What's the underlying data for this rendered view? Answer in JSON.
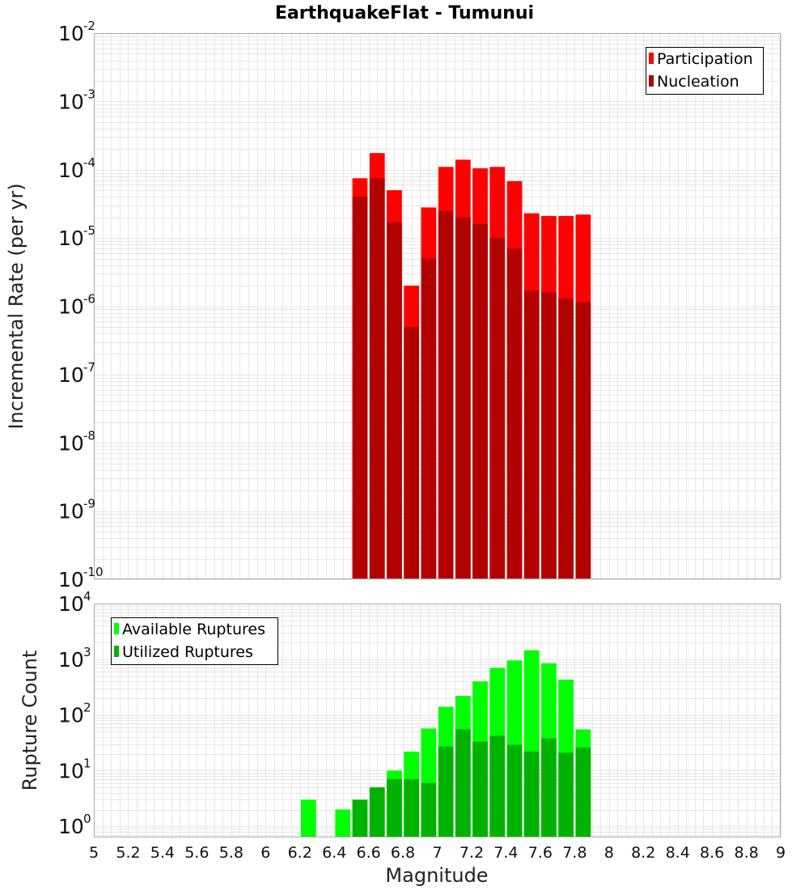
{
  "chart_data": {
    "title": "EarthquakeFlat - Tumunui",
    "xlabel": "Magnitude",
    "x_ticks": [
      "5",
      "5.2",
      "5.4",
      "5.6",
      "5.8",
      "6",
      "6.2",
      "6.4",
      "6.6",
      "6.8",
      "7",
      "7.2",
      "7.4",
      "7.6",
      "7.8",
      "8",
      "8.2",
      "8.4",
      "8.6",
      "8.8",
      "9"
    ],
    "xlim": [
      5,
      9
    ],
    "grid": true,
    "panels": [
      {
        "type": "bar",
        "ylabel": "Incremental Rate (per yr)",
        "yscale": "log",
        "ylim_exp": [
          -10,
          -2
        ],
        "y_ticks": [
          {
            "base": "10",
            "exp": "-2"
          },
          {
            "base": "10",
            "exp": "-3"
          },
          {
            "base": "10",
            "exp": "-4"
          },
          {
            "base": "10",
            "exp": "-5"
          },
          {
            "base": "10",
            "exp": "-6"
          },
          {
            "base": "10",
            "exp": "-7"
          },
          {
            "base": "10",
            "exp": "-8"
          },
          {
            "base": "10",
            "exp": "-9"
          },
          {
            "base": "10",
            "exp": "-10"
          }
        ],
        "legend_position": "top-right",
        "x": [
          6.55,
          6.65,
          6.75,
          6.85,
          6.95,
          7.05,
          7.15,
          7.25,
          7.35,
          7.45,
          7.55,
          7.65,
          7.75,
          7.85
        ],
        "series": [
          {
            "name": "Participation",
            "color": "#ff0000",
            "values": [
              7.5e-05,
              0.000175,
              5e-05,
              2e-06,
              2.8e-05,
              0.00011,
              0.00014,
              0.000105,
              0.00011,
              6.8e-05,
              2.3e-05,
              2.1e-05,
              2.1e-05,
              2.2e-05
            ]
          },
          {
            "name": "Nucleation",
            "color": "#b20000",
            "values": [
              4e-05,
              7.5e-05,
              1.7e-05,
              5e-07,
              5e-06,
              2.5e-05,
              2e-05,
              1.6e-05,
              1e-05,
              7e-06,
              1.7e-06,
              1.6e-06,
              1.3e-06,
              1.15e-06
            ]
          }
        ]
      },
      {
        "type": "bar",
        "ylabel": "Rupture Count",
        "yscale": "log",
        "ylim_exp": [
          -0.2,
          4
        ],
        "y_ticks": [
          {
            "base": "10",
            "exp": "4"
          },
          {
            "base": "10",
            "exp": "3"
          },
          {
            "base": "10",
            "exp": "2"
          },
          {
            "base": "10",
            "exp": "1"
          },
          {
            "base": "10",
            "exp": "0"
          }
        ],
        "legend_position": "top-left",
        "x": [
          6.25,
          6.35,
          6.45,
          6.55,
          6.65,
          6.75,
          6.85,
          6.95,
          7.05,
          7.15,
          7.25,
          7.35,
          7.45,
          7.55,
          7.65,
          7.75,
          7.85
        ],
        "series": [
          {
            "name": "Available Ruptures",
            "color": "#00ff00",
            "values": [
              3,
              0,
              2,
              3,
              5,
              10,
              22,
              57,
              140,
              220,
              400,
              700,
              950,
              1450,
              850,
              430,
              55
            ]
          },
          {
            "name": "Utilized Ruptures",
            "color": "#00b200",
            "values": [
              0,
              0,
              0,
              3,
              5,
              7,
              7,
              6,
              27,
              55,
              33,
              42,
              29,
              22,
              38,
              21,
              26
            ]
          }
        ]
      }
    ]
  }
}
